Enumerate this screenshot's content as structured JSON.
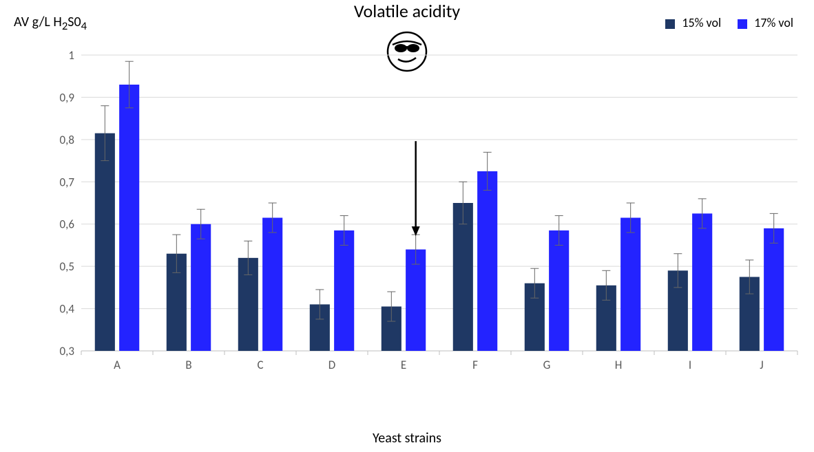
{
  "chart": {
    "type": "bar",
    "title": "Volatile acidity",
    "yaxis_title_plain": "AV g/L H2S04",
    "xaxis_title": "Yeast strains",
    "background_color": "#ffffff",
    "grid_color": "#d9d9d9",
    "axis_line_color": "#bfbfbf",
    "title_fontsize": 26,
    "axis_label_fontsize": 20,
    "tick_fontsize": 17,
    "legend_fontsize": 18,
    "ylim": [
      0.3,
      1.0
    ],
    "ytick_step": 0.1,
    "yticks": [
      "0,3",
      "0,4",
      "0,5",
      "0,6",
      "0,7",
      "0,8",
      "0,9",
      "1"
    ],
    "ytick_values": [
      0.3,
      0.4,
      0.5,
      0.6,
      0.7,
      0.8,
      0.9,
      1.0
    ],
    "categories": [
      "A",
      "B",
      "C",
      "D",
      "E",
      "F",
      "G",
      "H",
      "I",
      "J"
    ],
    "series": [
      {
        "name": "15% vol",
        "color": "#1f3864",
        "values": [
          0.815,
          0.53,
          0.52,
          0.41,
          0.405,
          0.65,
          0.46,
          0.455,
          0.49,
          0.475
        ],
        "errors": [
          0.065,
          0.045,
          0.04,
          0.035,
          0.035,
          0.05,
          0.035,
          0.035,
          0.04,
          0.04
        ]
      },
      {
        "name": "17% vol",
        "color": "#2323ff",
        "values": [
          0.93,
          0.6,
          0.615,
          0.585,
          0.54,
          0.725,
          0.585,
          0.615,
          0.625,
          0.59
        ],
        "errors": [
          0.055,
          0.035,
          0.035,
          0.035,
          0.035,
          0.045,
          0.035,
          0.035,
          0.035,
          0.035
        ]
      }
    ],
    "bar_width_ratio": 0.28,
    "bar_gap_ratio": 0.06,
    "error_cap_color": "#666666",
    "arrow": {
      "points_to_category": "E",
      "series_index": 1,
      "color": "#000000"
    },
    "face_icon": {
      "present": true,
      "stroke": "#000000"
    }
  }
}
